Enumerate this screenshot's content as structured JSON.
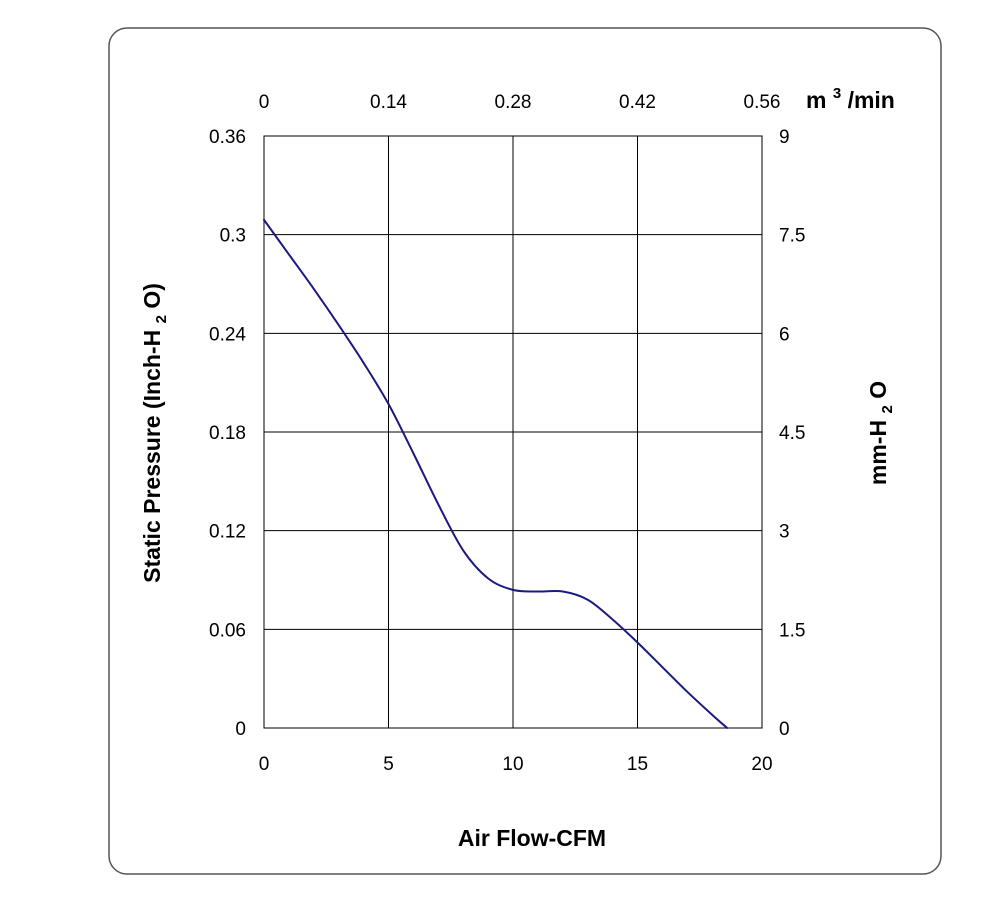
{
  "chart_data": {
    "type": "line",
    "colors": {
      "frame": "#555555",
      "grid": "#000000",
      "series": "#1a1a80"
    },
    "grid": true,
    "x_bottom": {
      "label": "Air Flow-CFM",
      "range": [
        0,
        20
      ],
      "ticks": [
        0,
        5,
        10,
        15,
        20
      ],
      "tick_labels": [
        "0",
        "5",
        "10",
        "15",
        "20"
      ]
    },
    "x_top": {
      "unit_label": "m",
      "unit_superscript": "3",
      "unit_suffix": "/min",
      "range": [
        0,
        0.56
      ],
      "ticks": [
        0,
        0.14,
        0.28,
        0.42,
        0.56
      ],
      "tick_labels": [
        "0",
        "0.14",
        "0.28",
        "0.42",
        "0.56"
      ]
    },
    "y_left": {
      "label_prefix": "Static Pressure (Inch-H",
      "label_subscript": "2",
      "label_suffix": "O)",
      "range": [
        0,
        0.36
      ],
      "ticks": [
        0,
        0.06,
        0.12,
        0.18,
        0.24,
        0.3,
        0.36
      ],
      "tick_labels": [
        "0",
        "0.06",
        "0.12",
        "0.18",
        "0.24",
        "0.3",
        "0.36"
      ]
    },
    "y_right": {
      "label_prefix": "mm-H",
      "label_subscript": "2",
      "label_suffix": "O",
      "range": [
        0,
        9
      ],
      "ticks": [
        0,
        1.5,
        3,
        4.5,
        6,
        7.5,
        9
      ],
      "tick_labels": [
        "0",
        "1.5",
        "3",
        "4.5",
        "6",
        "7.5",
        "9"
      ]
    },
    "series": [
      {
        "x": [
          0,
          1,
          2,
          3,
          4,
          5,
          6,
          7,
          8,
          9,
          10,
          11,
          12,
          13,
          14,
          15,
          16,
          17,
          18,
          18.6
        ],
        "y": [
          0.309,
          0.288,
          0.267,
          0.245,
          0.222,
          0.197,
          0.167,
          0.136,
          0.108,
          0.091,
          0.084,
          0.083,
          0.083,
          0.078,
          0.066,
          0.052,
          0.037,
          0.022,
          0.008,
          0
        ]
      }
    ]
  }
}
